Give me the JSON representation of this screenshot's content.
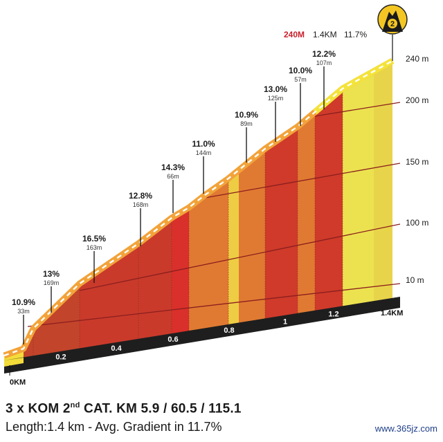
{
  "chart_data": {
    "type": "area",
    "y_ticks": [
      "10 m",
      "100 m",
      "150 m",
      "200 m",
      "240 m"
    ],
    "x_ticks": [
      "0KM",
      "0.2",
      "0.4",
      "0.6",
      "0.8",
      "1",
      "1.2",
      "1.4KM"
    ],
    "summary": {
      "elevation": "240M",
      "length": "1.4KM",
      "gradient": "11.7%"
    },
    "category_number": "2",
    "segments": [
      {
        "gradient": "10.9%",
        "length": "33m",
        "color": "#c2442b"
      },
      {
        "gradient": "13%",
        "length": "169m",
        "color": "#c2442b"
      },
      {
        "gradient": "16.5%",
        "length": "163m",
        "color": "#c93a2b"
      },
      {
        "gradient": "12.8%",
        "length": "168m",
        "color": "#c93a2b"
      },
      {
        "gradient": "14.3%",
        "length": "66m",
        "color": "#d9302b"
      },
      {
        "gradient": "11.0%",
        "length": "144m",
        "color": "#e07a32"
      },
      {
        "gradient": "10.9%",
        "length": "89m",
        "color": "#e07a32"
      },
      {
        "gradient": "13.0%",
        "length": "125m",
        "color": "#cf3a2a"
      },
      {
        "gradient": "10.0%",
        "length": "57m",
        "color": "#e07a32"
      },
      {
        "gradient": "12.2%",
        "length": "107m",
        "color": "#cf3a2a"
      },
      {
        "gradient": "",
        "length": "",
        "color": "#e8d44a"
      }
    ]
  },
  "caption": {
    "title_pre": "3 x KOM 2",
    "title_sup": "nd",
    "title_post": " CAT. KM 5.9 / 60.5 / 115.1",
    "subtitle": "Length:1.4 km - Avg. Gradient in 11.7%"
  },
  "watermark": "www.365jz.com"
}
